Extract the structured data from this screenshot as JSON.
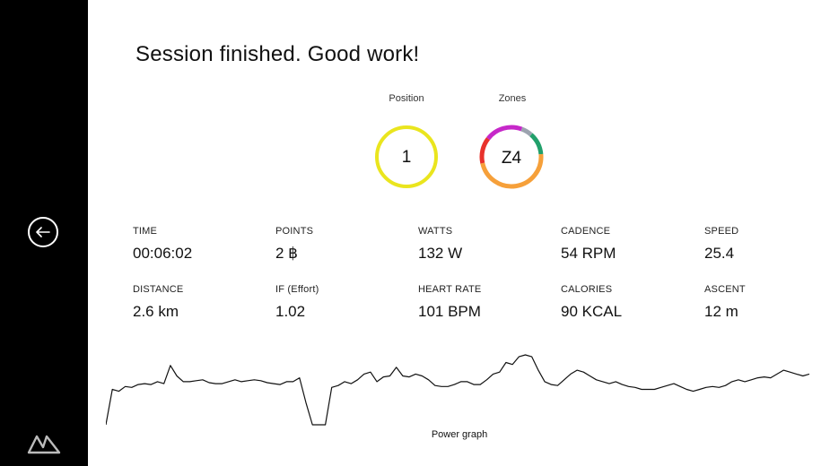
{
  "header": {
    "title": "Session finished. Good work!"
  },
  "sidebar": {
    "back_icon": "arrow-left-icon",
    "logo_icon": "brand-logo-icon"
  },
  "position": {
    "label": "Position",
    "value": "1",
    "ring_color": "#EAE51E"
  },
  "zones": {
    "label": "Zones",
    "value": "Z4",
    "segments": [
      {
        "color": "#9CA3AF",
        "fraction": 0.06
      },
      {
        "color": "#22A06B",
        "fraction": 0.12
      },
      {
        "color": "#F6A03A",
        "fraction": 0.48
      },
      {
        "color": "#E8322C",
        "fraction": 0.14
      },
      {
        "color": "#C628C9",
        "fraction": 0.2
      }
    ]
  },
  "stats": [
    {
      "label": "TIME",
      "value": "00:06:02"
    },
    {
      "label": "POINTS",
      "value": "2 ฿"
    },
    {
      "label": "WATTS",
      "value": "132 W"
    },
    {
      "label": "CADENCE",
      "value": "54 RPM"
    },
    {
      "label": "SPEED",
      "value": "25.4"
    },
    {
      "label": "DISTANCE",
      "value": "2.6 km"
    },
    {
      "label": "IF (Effort)",
      "value": "1.02"
    },
    {
      "label": "HEART RATE",
      "value": "101 BPM"
    },
    {
      "label": "CALORIES",
      "value": "90 KCAL"
    },
    {
      "label": "ASCENT",
      "value": "12 m"
    }
  ],
  "graph": {
    "label": "Power graph",
    "line_color": "#111111",
    "values": [
      5,
      42,
      40,
      45,
      44,
      47,
      48,
      47,
      50,
      48,
      67,
      56,
      50,
      50,
      51,
      52,
      49,
      48,
      48,
      50,
      52,
      50,
      51,
      52,
      51,
      49,
      48,
      47,
      50,
      50,
      54,
      28,
      5,
      5,
      5,
      44,
      46,
      50,
      48,
      52,
      58,
      60,
      50,
      55,
      56,
      65,
      56,
      55,
      58,
      56,
      52,
      46,
      45,
      45,
      47,
      50,
      50,
      47,
      47,
      52,
      58,
      60,
      70,
      68,
      76,
      78,
      76,
      62,
      50,
      47,
      46,
      52,
      58,
      62,
      60,
      56,
      52,
      50,
      48,
      50,
      47,
      45,
      44,
      42,
      42,
      42,
      44,
      46,
      48,
      45,
      42,
      40,
      42,
      44,
      45,
      44,
      46,
      50,
      52,
      50,
      52,
      54,
      55,
      54,
      58,
      62,
      60,
      58,
      56,
      58
    ]
  }
}
